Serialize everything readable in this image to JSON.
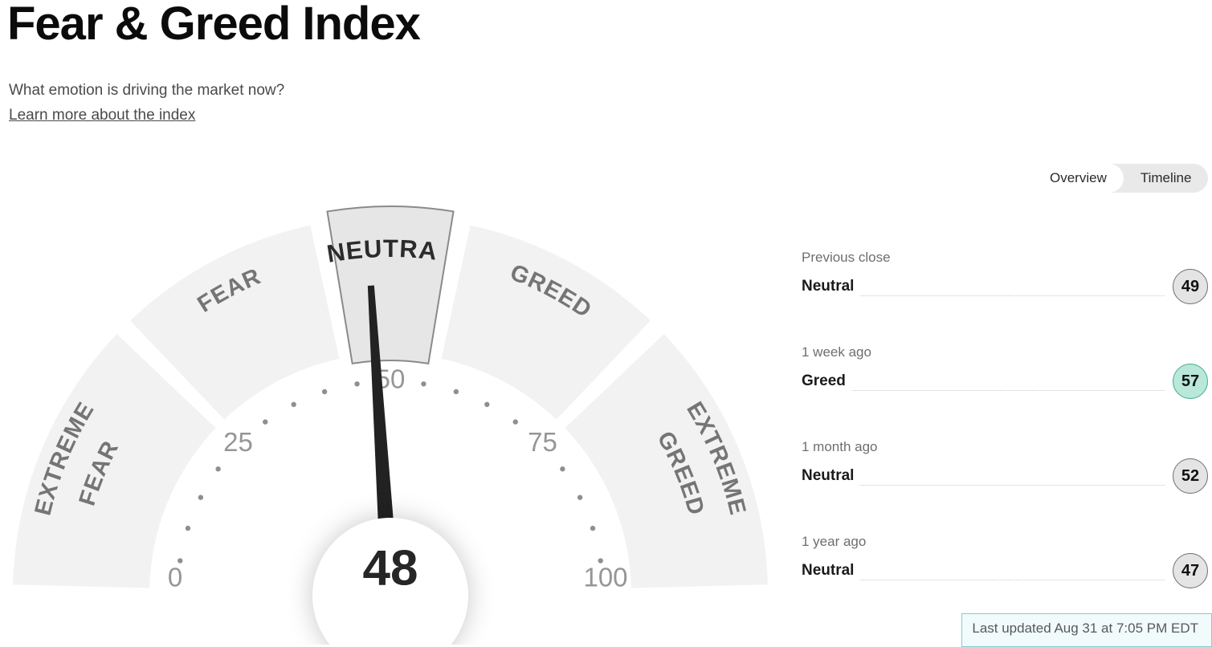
{
  "page": {
    "title": "Fear & Greed Index",
    "subtitle": "What emotion is driving the market now?",
    "learn_more_label": "Learn more about the index"
  },
  "tabs": {
    "options": [
      "Overview",
      "Timeline"
    ],
    "selected": "Overview"
  },
  "history": {
    "rows": [
      {
        "label": "Previous close",
        "sentiment": "Neutral",
        "value": "49",
        "highlight": false
      },
      {
        "label": "1 week ago",
        "sentiment": "Greed",
        "value": "57",
        "highlight": true
      },
      {
        "label": "1 month ago",
        "sentiment": "Neutral",
        "value": "52",
        "highlight": false
      },
      {
        "label": "1 year ago",
        "sentiment": "Neutral",
        "value": "47",
        "highlight": false
      }
    ]
  },
  "footer": {
    "last_updated": "Last updated Aug 31 at 7:05 PM EDT"
  },
  "colors": {
    "needle": "#222222",
    "segment_fill": "#f2f2f2",
    "active_segment_fill": "#e6e6e6",
    "active_segment_border": "#8a8a8a",
    "segment_label": "#757575",
    "active_segment_label": "#2b2b2b",
    "tick_number": "#969696",
    "tick_dot": "#8f8f8f",
    "score_text": "#262626",
    "badge_bg": "#e4e4e4",
    "badge_border": "#6f6f6f",
    "highlight_badge_bg": "#b9e8da",
    "highlight_badge_border": "#3fae8a",
    "last_updated_border": "#7ed0d4",
    "last_updated_bg": "#f1fbfb"
  },
  "chart_data": {
    "type": "gauge",
    "title": "Fear & Greed Index",
    "value": 48,
    "value_sentiment": "Neutral",
    "range": [
      0,
      100
    ],
    "tick_labels": [
      0,
      25,
      50,
      75,
      100
    ],
    "dot_values": [
      5,
      10,
      15,
      20,
      30,
      35,
      40,
      45,
      55,
      60,
      65,
      70,
      80,
      85,
      90,
      95
    ],
    "segments": [
      {
        "label": "EXTREME FEAR",
        "lines": [
          "EXTREME",
          "FEAR"
        ],
        "from": 0,
        "to": 25,
        "active": false
      },
      {
        "label": "FEAR",
        "lines": [
          "FEAR"
        ],
        "from": 25,
        "to": 44,
        "active": false
      },
      {
        "label": "NEUTRAL",
        "lines": [
          "NEUTRAL"
        ],
        "from": 44,
        "to": 56,
        "active": true
      },
      {
        "label": "GREED",
        "lines": [
          "GREED"
        ],
        "from": 56,
        "to": 75,
        "active": false
      },
      {
        "label": "EXTREME GREED",
        "lines": [
          "EXTREME",
          "GREED"
        ],
        "from": 75,
        "to": 100,
        "active": false
      }
    ],
    "history": [
      {
        "label": "Previous close",
        "sentiment": "Neutral",
        "value": 49
      },
      {
        "label": "1 week ago",
        "sentiment": "Greed",
        "value": 57
      },
      {
        "label": "1 month ago",
        "sentiment": "Neutral",
        "value": 52
      },
      {
        "label": "1 year ago",
        "sentiment": "Neutral",
        "value": 47
      }
    ]
  }
}
